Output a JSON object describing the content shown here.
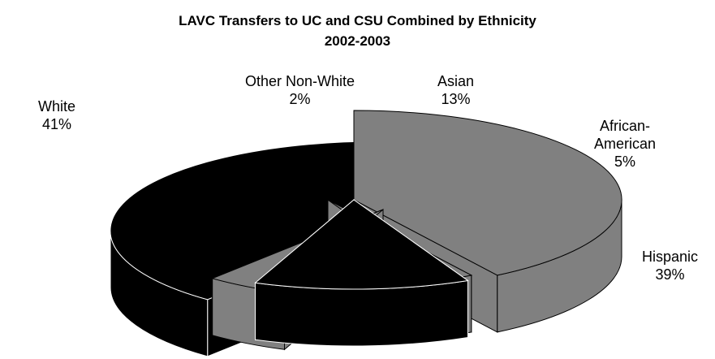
{
  "chart_data": {
    "type": "pie",
    "title": "LAVC Transfers to UC and CSU Combined by Ethnicity",
    "subtitle": "2002-2003",
    "three_d": true,
    "exploded": true,
    "slices": [
      {
        "label": "White",
        "label_lines": [
          "White"
        ],
        "percent_label": "41%",
        "value": 41,
        "color": "#808080"
      },
      {
        "label": "Other Non-White",
        "label_lines": [
          "Other Non-White"
        ],
        "percent_label": "2%",
        "value": 2,
        "color": "#808080"
      },
      {
        "label": "Asian",
        "label_lines": [
          "Asian"
        ],
        "percent_label": "13%",
        "value": 13,
        "color": "#000000"
      },
      {
        "label": "African-American",
        "label_lines": [
          "African-",
          "American"
        ],
        "percent_label": "5%",
        "value": 5,
        "color": "#808080"
      },
      {
        "label": "Hispanic",
        "label_lines": [
          "Hispanic"
        ],
        "percent_label": "39%",
        "value": 39,
        "color": "#000000"
      }
    ]
  }
}
